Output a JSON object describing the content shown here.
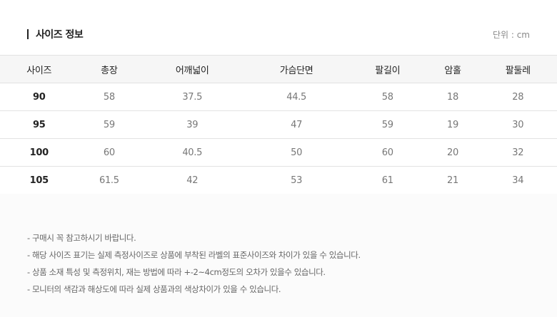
{
  "title": "사이즈 정보",
  "unit": "단위 : cm",
  "table": {
    "headers": [
      "사이즈",
      "총장",
      "어깨넓이",
      "가슴단면",
      "팔길이",
      "암홀",
      "팔둘레"
    ],
    "rows": [
      [
        "90",
        "58",
        "37.5",
        "44.5",
        "58",
        "18",
        "28"
      ],
      [
        "95",
        "59",
        "39",
        "47",
        "59",
        "19",
        "30"
      ],
      [
        "100",
        "60",
        "40.5",
        "50",
        "60",
        "20",
        "32"
      ],
      [
        "105",
        "61.5",
        "42",
        "53",
        "61",
        "21",
        "34"
      ]
    ]
  },
  "notes": [
    "- 구매시 꼭 참고하시기 바랍니다.",
    "- 해당 사이즈 표기는 실제 측정사이즈로 상품에 부착된 라벨의 표준사이즈와 차이가 있을 수 있습니다.",
    "- 상품 소재 특성 및 측정위치, 재는 방법에 따라 +-2~4cm정도의 오차가 있을수 있습니다.",
    "- 모니터의 색감과 해상도에 따라 실제 상품과의 색상차이가 있을 수 있습니다."
  ]
}
